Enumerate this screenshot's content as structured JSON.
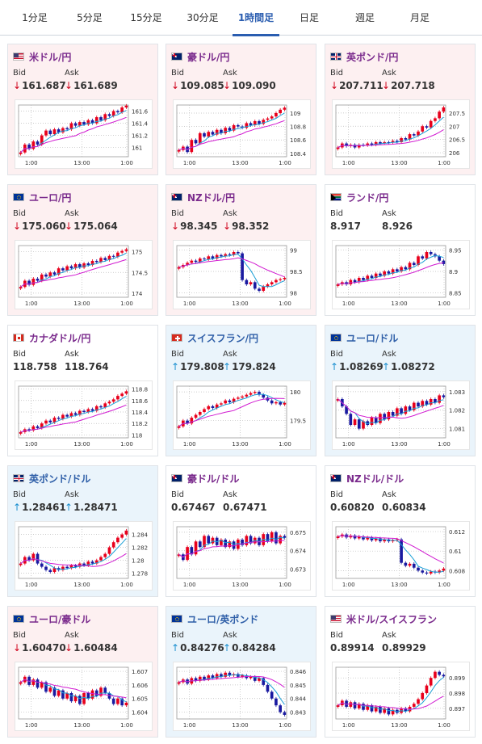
{
  "tabs": [
    {
      "label": "1分足",
      "active": false
    },
    {
      "label": "5分足",
      "active": false
    },
    {
      "label": "15分足",
      "active": false
    },
    {
      "label": "30分足",
      "active": false
    },
    {
      "label": "1時間足",
      "active": true
    },
    {
      "label": "日足",
      "active": false
    },
    {
      "label": "週足",
      "active": false
    },
    {
      "label": "月足",
      "active": false
    }
  ],
  "labels": {
    "bid": "Bid",
    "ask": "Ask"
  },
  "colors": {
    "candle_up": "#e8001c",
    "candle_down": "#1a1aa0",
    "ma_short": "#1a9fd6",
    "ma_long": "#d11ad1",
    "pair_text": "#7a2a8c"
  },
  "cards": [
    {
      "pair": "米ドル/円",
      "flag": "us-flag",
      "direction": "down",
      "bid": "161.687",
      "ask": "161.689",
      "chart_data": {
        "type": "candlestick",
        "x_ticks": [
          "1:00",
          "13:00",
          "1:00"
        ],
        "y_ticks": [
          "161.6",
          "161.4",
          "161.2",
          "161"
        ],
        "ylim": [
          160.85,
          161.7
        ],
        "closes": [
          160.92,
          161.05,
          160.98,
          161.1,
          161.05,
          161.2,
          161.28,
          161.22,
          161.3,
          161.25,
          161.32,
          161.3,
          161.4,
          161.36,
          161.42,
          161.38,
          161.45,
          161.4,
          161.5,
          161.45,
          161.55,
          161.52,
          161.6,
          161.58,
          161.66,
          161.69
        ]
      }
    },
    {
      "pair": "豪ドル/円",
      "flag": "au-flag",
      "direction": "down",
      "bid": "109.085",
      "ask": "109.090",
      "chart_data": {
        "type": "candlestick",
        "x_ticks": [
          "1:00",
          "13:00",
          "1:00"
        ],
        "y_ticks": [
          "109",
          "108.8",
          "108.6",
          "108.4"
        ],
        "ylim": [
          108.35,
          109.12
        ],
        "closes": [
          108.45,
          108.5,
          108.42,
          108.6,
          108.55,
          108.7,
          108.65,
          108.72,
          108.68,
          108.75,
          108.7,
          108.78,
          108.74,
          108.82,
          108.8,
          108.78,
          108.85,
          108.82,
          108.88,
          108.84,
          108.9,
          108.92,
          108.95,
          109.0,
          109.05,
          109.08
        ]
      }
    },
    {
      "pair": "英ポンド/円",
      "flag": "gb-flag",
      "direction": "down",
      "bid": "207.711",
      "ask": "207.718",
      "chart_data": {
        "type": "candlestick",
        "x_ticks": [
          "1:00",
          "13:00",
          "1:00"
        ],
        "y_ticks": [
          "207.5",
          "207",
          "206.5",
          "206"
        ],
        "ylim": [
          205.85,
          207.8
        ],
        "closes": [
          206.2,
          206.35,
          206.25,
          206.3,
          206.2,
          206.3,
          206.28,
          206.35,
          206.3,
          206.4,
          206.35,
          206.4,
          206.38,
          206.45,
          206.4,
          206.55,
          206.5,
          206.7,
          206.65,
          206.8,
          207.0,
          206.95,
          207.2,
          207.3,
          207.55,
          207.71
        ]
      }
    },
    {
      "pair": "ユーロ/円",
      "flag": "eu-flag",
      "direction": "down",
      "bid": "175.060",
      "ask": "175.064",
      "chart_data": {
        "type": "candlestick",
        "x_ticks": [
          "1:00",
          "13:00",
          "1:00"
        ],
        "y_ticks": [
          "175",
          "174.5",
          "174"
        ],
        "ylim": [
          173.9,
          175.15
        ],
        "closes": [
          174.15,
          174.3,
          174.2,
          174.35,
          174.3,
          174.45,
          174.4,
          174.5,
          174.45,
          174.6,
          174.55,
          174.65,
          174.6,
          174.7,
          174.62,
          174.72,
          174.68,
          174.78,
          174.75,
          174.85,
          174.8,
          174.9,
          174.88,
          174.98,
          175.02,
          175.06
        ]
      }
    },
    {
      "pair": "NZドル/円",
      "flag": "nz-flag",
      "direction": "down",
      "bid": "98.345",
      "ask": "98.352",
      "chart_data": {
        "type": "candlestick",
        "x_ticks": [
          "1:00",
          "13:00",
          "1:00"
        ],
        "y_ticks": [
          "99",
          "98.5",
          "98"
        ],
        "ylim": [
          97.9,
          99.1
        ],
        "closes": [
          98.6,
          98.65,
          98.7,
          98.75,
          98.72,
          98.8,
          98.78,
          98.85,
          98.8,
          98.88,
          98.85,
          98.9,
          98.88,
          98.95,
          98.92,
          98.3,
          98.2,
          98.25,
          98.1,
          98.05,
          98.15,
          98.2,
          98.25,
          98.3,
          98.32,
          98.35
        ]
      }
    },
    {
      "pair": "ランド/円",
      "flag": "za-flag",
      "direction": "flat",
      "bid": "8.917",
      "ask": "8.926",
      "chart_data": {
        "type": "candlestick",
        "x_ticks": [
          "1:00",
          "13:00",
          "1:00"
        ],
        "y_ticks": [
          "8.95",
          "8.9",
          "8.85"
        ],
        "ylim": [
          8.84,
          8.96
        ],
        "closes": [
          8.87,
          8.875,
          8.87,
          8.88,
          8.875,
          8.885,
          8.88,
          8.89,
          8.885,
          8.895,
          8.89,
          8.9,
          8.895,
          8.905,
          8.9,
          8.91,
          8.905,
          8.92,
          8.915,
          8.935,
          8.93,
          8.945,
          8.94,
          8.935,
          8.925,
          8.917
        ]
      }
    },
    {
      "pair": "カナダドル/円",
      "flag": "ca-flag",
      "direction": "flat",
      "bid": "118.758",
      "ask": "118.764",
      "chart_data": {
        "type": "candlestick",
        "x_ticks": [
          "1:00",
          "13:00",
          "1:00"
        ],
        "y_ticks": [
          "118.8",
          "118.6",
          "118.4",
          "118.2",
          "118"
        ],
        "ylim": [
          117.95,
          118.85
        ],
        "closes": [
          118.05,
          118.1,
          118.08,
          118.15,
          118.12,
          118.2,
          118.25,
          118.22,
          118.3,
          118.28,
          118.35,
          118.32,
          118.38,
          118.35,
          118.42,
          118.4,
          118.45,
          118.42,
          118.5,
          118.48,
          118.55,
          118.58,
          118.62,
          118.68,
          118.72,
          118.76
        ]
      }
    },
    {
      "pair": "スイスフラン/円",
      "flag": "ch-flag",
      "direction": "up",
      "bid": "179.808",
      "ask": "179.824",
      "chart_data": {
        "type": "candlestick",
        "x_ticks": [
          "1:00",
          "13:00",
          "1:00"
        ],
        "y_ticks": [
          "180",
          "179.5"
        ],
        "ylim": [
          179.2,
          180.1
        ],
        "closes": [
          179.4,
          179.5,
          179.45,
          179.55,
          179.6,
          179.65,
          179.7,
          179.75,
          179.72,
          179.78,
          179.8,
          179.85,
          179.82,
          179.88,
          179.9,
          179.92,
          179.95,
          179.98,
          180.0,
          179.95,
          179.9,
          179.85,
          179.8,
          179.82,
          179.78,
          179.81
        ]
      }
    },
    {
      "pair": "ユーロ/ドル",
      "flag": "eu-us-flag",
      "direction": "up",
      "bid": "1.08269",
      "ask": "1.08272",
      "chart_data": {
        "type": "candlestick",
        "x_ticks": [
          "1:00",
          "13:00",
          "1:00"
        ],
        "y_ticks": [
          "1.083",
          "1.082",
          "1.081"
        ],
        "ylim": [
          1.0805,
          1.0833
        ],
        "closes": [
          1.0826,
          1.0822,
          1.0818,
          1.0812,
          1.0815,
          1.081,
          1.0814,
          1.0812,
          1.0816,
          1.0813,
          1.0818,
          1.0815,
          1.0819,
          1.0817,
          1.0821,
          1.0818,
          1.0822,
          1.082,
          1.0824,
          1.0822,
          1.0825,
          1.0823,
          1.0826,
          1.0824,
          1.0828,
          1.0827
        ]
      }
    },
    {
      "pair": "英ポンド/ドル",
      "flag": "gb-us-flag",
      "direction": "up",
      "bid": "1.28461",
      "ask": "1.28471",
      "chart_data": {
        "type": "candlestick",
        "x_ticks": [
          "1:00",
          "13:00",
          "1:00"
        ],
        "y_ticks": [
          "1.284",
          "1.282",
          "1.28",
          "1.278"
        ],
        "ylim": [
          1.2772,
          1.2852
        ],
        "closes": [
          1.2795,
          1.2805,
          1.28,
          1.281,
          1.2795,
          1.279,
          1.2785,
          1.2782,
          1.2788,
          1.2785,
          1.279,
          1.2788,
          1.2792,
          1.279,
          1.2795,
          1.2792,
          1.2798,
          1.2795,
          1.28,
          1.2805,
          1.281,
          1.282,
          1.2828,
          1.2835,
          1.284,
          1.2846
        ]
      }
    },
    {
      "pair": "豪ドル/ドル",
      "flag": "au-us-flag",
      "direction": "flat",
      "bid": "0.67467",
      "ask": "0.67471",
      "chart_data": {
        "type": "candlestick",
        "x_ticks": [
          "1:00",
          "13:00",
          "1:00"
        ],
        "y_ticks": [
          "0.675",
          "0.674",
          "0.673"
        ],
        "ylim": [
          0.6725,
          0.6753
        ],
        "closes": [
          0.6738,
          0.6735,
          0.6742,
          0.6738,
          0.6745,
          0.6742,
          0.6748,
          0.6744,
          0.6747,
          0.6743,
          0.6746,
          0.6742,
          0.6745,
          0.6741,
          0.6746,
          0.6743,
          0.6748,
          0.6744,
          0.6747,
          0.6743,
          0.6749,
          0.6745,
          0.675,
          0.6744,
          0.6748,
          0.6747
        ]
      }
    },
    {
      "pair": "NZドル/ドル",
      "flag": "nz-us-flag",
      "direction": "flat",
      "bid": "0.60820",
      "ask": "0.60834",
      "chart_data": {
        "type": "candlestick",
        "x_ticks": [
          "1:00",
          "13:00",
          "1:00"
        ],
        "y_ticks": [
          "0.612",
          "0.61",
          "0.608"
        ],
        "ylim": [
          0.6072,
          0.6125
        ],
        "closes": [
          0.6115,
          0.6117,
          0.6114,
          0.6116,
          0.6113,
          0.6115,
          0.6112,
          0.6114,
          0.6111,
          0.6113,
          0.611,
          0.6112,
          0.611,
          0.6111,
          0.6112,
          0.6088,
          0.6085,
          0.6087,
          0.6083,
          0.608,
          0.6078,
          0.6077,
          0.6079,
          0.6078,
          0.608,
          0.6082
        ]
      }
    },
    {
      "pair": "ユーロ/豪ドル",
      "flag": "eu-au-flag",
      "direction": "down",
      "bid": "1.60470",
      "ask": "1.60484",
      "chart_data": {
        "type": "candlestick",
        "x_ticks": [
          "1:00",
          "13:00",
          "1:00"
        ],
        "y_ticks": [
          "1.607",
          "1.606",
          "1.605",
          "1.604"
        ],
        "ylim": [
          1.6035,
          1.6073
        ],
        "closes": [
          1.6062,
          1.6066,
          1.606,
          1.6064,
          1.6058,
          1.6062,
          1.6055,
          1.6058,
          1.6052,
          1.6056,
          1.605,
          1.6054,
          1.6048,
          1.6052,
          1.6046,
          1.6054,
          1.605,
          1.6056,
          1.6052,
          1.6058,
          1.6054,
          1.605,
          1.6046,
          1.605,
          1.6045,
          1.6047
        ]
      }
    },
    {
      "pair": "ユーロ/英ポンド",
      "flag": "eu-gb-flag",
      "direction": "up",
      "bid": "0.84276",
      "ask": "0.84284",
      "chart_data": {
        "type": "candlestick",
        "x_ticks": [
          "1:00",
          "13:00",
          "1:00"
        ],
        "y_ticks": [
          "0.846",
          "0.845",
          "0.844",
          "0.843"
        ],
        "ylim": [
          0.8425,
          0.8463
        ],
        "closes": [
          0.8452,
          0.8454,
          0.8451,
          0.8455,
          0.8453,
          0.8456,
          0.8454,
          0.8457,
          0.8455,
          0.8458,
          0.8456,
          0.8459,
          0.8457,
          0.8458,
          0.8456,
          0.8457,
          0.8455,
          0.8456,
          0.8453,
          0.8455,
          0.845,
          0.8445,
          0.844,
          0.8435,
          0.843,
          0.8428
        ]
      }
    },
    {
      "pair": "米ドル/スイスフラン",
      "flag": "us-ch-flag",
      "direction": "flat",
      "bid": "0.89914",
      "ask": "0.89929",
      "chart_data": {
        "type": "candlestick",
        "x_ticks": [
          "1:00",
          "13:00",
          "1:00"
        ],
        "y_ticks": [
          "0.899",
          "0.898",
          "0.897"
        ],
        "ylim": [
          0.8963,
          0.8997
        ],
        "closes": [
          0.8972,
          0.8975,
          0.8971,
          0.8974,
          0.897,
          0.8973,
          0.8969,
          0.8972,
          0.8968,
          0.8971,
          0.8967,
          0.897,
          0.8966,
          0.8969,
          0.8967,
          0.897,
          0.8968,
          0.8971,
          0.8973,
          0.8976,
          0.898,
          0.8985,
          0.899,
          0.8994,
          0.8992,
          0.8991
        ]
      }
    }
  ]
}
